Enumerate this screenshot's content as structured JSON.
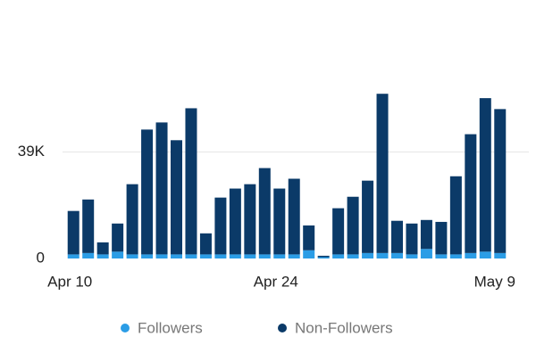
{
  "chart_data": {
    "type": "stacked_bar",
    "categories": [
      "Apr 10",
      null,
      null,
      null,
      null,
      null,
      null,
      null,
      null,
      null,
      null,
      null,
      null,
      null,
      "Apr 24",
      null,
      null,
      null,
      null,
      null,
      null,
      null,
      null,
      null,
      null,
      null,
      null,
      null,
      null,
      "May 9"
    ],
    "series": [
      {
        "name": "Followers",
        "color": "#2b9de6",
        "values": [
          1500,
          2000,
          1500,
          2500,
          1500,
          1500,
          1500,
          1500,
          1500,
          1500,
          1500,
          1500,
          1500,
          1500,
          1500,
          1500,
          3000,
          500,
          1500,
          1500,
          2000,
          2000,
          2000,
          1500,
          3500,
          1500,
          1500,
          2000,
          2500,
          2000
        ]
      },
      {
        "name": "Non-Followers",
        "color": "#0b3a68",
        "values": [
          15900,
          19600,
          4400,
          10300,
          25700,
          45700,
          48300,
          41800,
          53500,
          7700,
          20800,
          24100,
          25700,
          31600,
          24100,
          27700,
          9100,
          500,
          16900,
          21100,
          26500,
          58300,
          11800,
          11300,
          10600,
          11900,
          28600,
          43500,
          56200,
          52700
        ]
      }
    ],
    "ylim": [
      0,
      62000
    ],
    "yticks": [
      0,
      {
        "value": 39000,
        "label": "39K"
      }
    ],
    "grid": true
  }
}
